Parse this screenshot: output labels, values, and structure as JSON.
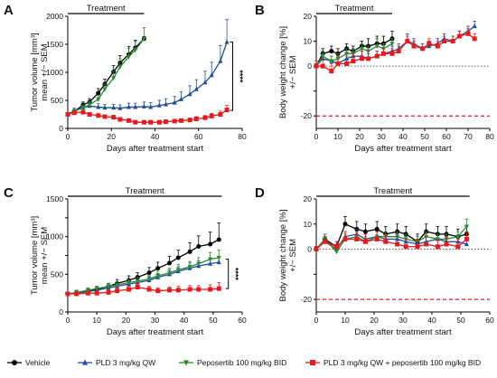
{
  "figure": {
    "legend": [
      {
        "name": "Vehicle",
        "color": "#000000",
        "marker": "circle"
      },
      {
        "name": "PLD 3 mg/kg QW",
        "color": "#1f4e9c",
        "marker": "triangle-up"
      },
      {
        "name": "Peposertib 100 mg/kg BID",
        "color": "#2a8a35",
        "marker": "triangle-down"
      },
      {
        "name": "PLD 3 mg/kg QW + peposertib 100 mg/kg BID",
        "color": "#e8191d",
        "marker": "square"
      }
    ]
  },
  "chart_data": [
    {
      "panel": "A",
      "type": "line",
      "xlabel": "Days after treatment start",
      "ylabel": "Tumor volume [mm³]\nmean +/− SEM",
      "xlim": [
        0,
        80
      ],
      "ylim": [
        0,
        2000
      ],
      "xticks": [
        0,
        20,
        40,
        60,
        80
      ],
      "yticks": [
        0,
        500,
        1000,
        1500,
        2000
      ],
      "treatment": {
        "label": "Treatment",
        "x": [
          0,
          35
        ]
      },
      "significance": {
        "label": "****",
        "y": [
          320,
          1540
        ],
        "x": 74
      },
      "series": [
        {
          "name": "Vehicle",
          "x": [
            0,
            3,
            7,
            10,
            14,
            17,
            21,
            24,
            28,
            31,
            35
          ],
          "y": [
            250,
            300,
            420,
            470,
            630,
            790,
            1010,
            1170,
            1320,
            1440,
            1600
          ],
          "err": [
            30,
            40,
            50,
            60,
            80,
            90,
            110,
            130,
            140,
            130,
            40
          ]
        },
        {
          "name": "PLD 3 mg/kg QW",
          "x": [
            0,
            3,
            7,
            10,
            14,
            17,
            21,
            24,
            28,
            31,
            35,
            38,
            42,
            45,
            49,
            52,
            56,
            59,
            63,
            66,
            70,
            73
          ],
          "y": [
            250,
            320,
            370,
            400,
            380,
            370,
            370,
            360,
            380,
            380,
            390,
            380,
            410,
            430,
            460,
            520,
            610,
            700,
            820,
            950,
            1200,
            1540
          ],
          "err": [
            30,
            40,
            50,
            60,
            60,
            60,
            60,
            60,
            70,
            70,
            80,
            80,
            90,
            100,
            110,
            130,
            150,
            170,
            200,
            230,
            280,
            400
          ]
        },
        {
          "name": "Peposertib 100 mg/kg BID",
          "x": [
            0,
            3,
            7,
            10,
            14,
            17,
            21,
            24,
            28,
            31,
            35
          ],
          "y": [
            250,
            300,
            370,
            420,
            520,
            700,
            900,
            1100,
            1280,
            1400,
            1600
          ],
          "err": [
            30,
            40,
            50,
            60,
            70,
            90,
            120,
            140,
            150,
            150,
            200
          ]
        },
        {
          "name": "PLD 3 mg/kg QW + peposertib 100 mg/kg BID",
          "x": [
            0,
            3,
            7,
            10,
            14,
            17,
            21,
            24,
            28,
            31,
            35,
            38,
            42,
            45,
            49,
            52,
            56,
            59,
            63,
            66,
            70,
            73
          ],
          "y": [
            250,
            280,
            290,
            250,
            230,
            210,
            200,
            160,
            140,
            110,
            110,
            110,
            110,
            120,
            130,
            140,
            150,
            170,
            190,
            220,
            250,
            330
          ],
          "err": [
            20,
            30,
            30,
            30,
            30,
            30,
            30,
            30,
            30,
            20,
            20,
            20,
            20,
            20,
            20,
            30,
            30,
            40,
            40,
            50,
            60,
            80
          ]
        }
      ]
    },
    {
      "panel": "B",
      "type": "line",
      "xlabel": "Days after treatment start",
      "ylabel": "Body weight change [%]\n+/− SEM",
      "xlim": [
        0,
        80
      ],
      "ylim": [
        -25,
        20
      ],
      "xticks": [
        0,
        10,
        20,
        30,
        40,
        50,
        60,
        70,
        80
      ],
      "yticks": [
        -20,
        -10,
        0,
        10,
        20
      ],
      "yticks_shown": [
        -20,
        0,
        10,
        20
      ],
      "treatment": {
        "label": "Treatment",
        "x": [
          0,
          35
        ]
      },
      "reference_lines": [
        {
          "y": 0,
          "style": "dotted",
          "color": "#555555"
        },
        {
          "y": -20,
          "style": "dashed",
          "color": "#e8191d"
        }
      ],
      "series": [
        {
          "name": "Vehicle",
          "x": [
            0,
            3,
            7,
            10,
            14,
            17,
            21,
            24,
            28,
            31,
            35
          ],
          "y": [
            0,
            5,
            6,
            5,
            7,
            6,
            8,
            8,
            9,
            9,
            11
          ],
          "err": [
            1,
            2,
            2,
            2,
            2,
            2,
            2,
            3,
            3,
            3,
            3
          ]
        },
        {
          "name": "PLD 3 mg/kg QW",
          "x": [
            0,
            3,
            7,
            10,
            14,
            17,
            21,
            24,
            28,
            31,
            35,
            38,
            42,
            45,
            49,
            52,
            56,
            59,
            63,
            66,
            70,
            73
          ],
          "y": [
            0,
            3,
            2,
            1,
            3,
            4,
            4,
            3,
            4,
            5,
            6,
            7,
            10,
            9,
            7,
            8,
            9,
            11,
            10,
            12,
            14,
            16
          ],
          "err": [
            1,
            2,
            2,
            2,
            2,
            2,
            2,
            2,
            2,
            2,
            2,
            2,
            3,
            2,
            2,
            2,
            2,
            2,
            2,
            2,
            2,
            2
          ]
        },
        {
          "name": "Peposertib 100 mg/kg BID",
          "x": [
            0,
            3,
            7,
            10,
            14,
            17,
            21,
            24,
            28,
            31,
            35
          ],
          "y": [
            0,
            4,
            2,
            3,
            5,
            5,
            7,
            6,
            8,
            7,
            9
          ],
          "err": [
            1,
            2,
            2,
            2,
            2,
            2,
            2,
            2,
            3,
            2,
            2
          ]
        },
        {
          "name": "PLD 3 mg/kg QW + peposertib 100 mg/kg BID",
          "x": [
            0,
            3,
            7,
            10,
            14,
            17,
            21,
            24,
            28,
            31,
            35,
            38,
            42,
            45,
            49,
            52,
            56,
            59,
            63,
            66,
            70,
            73
          ],
          "y": [
            0,
            0,
            -2,
            1,
            1,
            2,
            3,
            3,
            4,
            5,
            5,
            6,
            10,
            8,
            7,
            9,
            8,
            10,
            10,
            12,
            13,
            11
          ],
          "err": [
            2,
            3,
            3,
            3,
            3,
            3,
            3,
            3,
            2,
            2,
            2,
            2,
            2,
            2,
            2,
            2,
            2,
            2,
            2,
            2,
            2,
            2
          ]
        }
      ]
    },
    {
      "panel": "C",
      "type": "line",
      "xlabel": "Days after treatment start",
      "ylabel": "Tumor volume [mm³]\nmean +/− SEM",
      "xlim": [
        0,
        60
      ],
      "ylim": [
        0,
        1500
      ],
      "xticks": [
        0,
        10,
        20,
        30,
        40,
        50,
        60
      ],
      "yticks": [
        0,
        250,
        500,
        750,
        1000,
        1250,
        1500
      ],
      "yticks_shown": [
        0,
        500,
        1000,
        1500
      ],
      "treatment": {
        "label": "Treatment",
        "x": [
          0,
          53
        ]
      },
      "significance": {
        "label": "****",
        "y": [
          310,
          700
        ],
        "x": 54
      },
      "series": [
        {
          "name": "Vehicle",
          "x": [
            0,
            3,
            7,
            10,
            14,
            17,
            21,
            24,
            28,
            31,
            35,
            38,
            42,
            45,
            49,
            52
          ],
          "y": [
            240,
            250,
            280,
            300,
            340,
            380,
            420,
            460,
            520,
            580,
            650,
            720,
            800,
            870,
            900,
            960
          ],
          "err": [
            20,
            30,
            30,
            40,
            40,
            50,
            60,
            60,
            70,
            80,
            90,
            100,
            120,
            140,
            160,
            220
          ]
        },
        {
          "name": "PLD 3 mg/kg QW",
          "x": [
            0,
            3,
            7,
            10,
            14,
            17,
            21,
            24,
            28,
            31,
            35,
            38,
            42,
            45,
            49,
            52
          ],
          "y": [
            240,
            250,
            270,
            290,
            320,
            340,
            370,
            390,
            420,
            460,
            500,
            540,
            580,
            610,
            640,
            660
          ],
          "err": [
            20,
            20,
            30,
            30,
            30,
            40,
            40,
            40,
            50,
            50,
            60,
            60,
            70,
            70,
            80,
            80
          ]
        },
        {
          "name": "Peposertib 100 mg/kg BID",
          "x": [
            0,
            3,
            7,
            10,
            14,
            17,
            21,
            24,
            28,
            31,
            35,
            38,
            42,
            45,
            49,
            52
          ],
          "y": [
            240,
            260,
            290,
            310,
            340,
            360,
            390,
            410,
            440,
            480,
            520,
            560,
            600,
            640,
            700,
            720
          ],
          "err": [
            20,
            30,
            30,
            30,
            40,
            40,
            40,
            50,
            50,
            60,
            60,
            70,
            70,
            80,
            90,
            100
          ]
        },
        {
          "name": "PLD 3 mg/kg QW + peposertib 100 mg/kg BID",
          "x": [
            0,
            3,
            7,
            10,
            14,
            17,
            21,
            24,
            28,
            31,
            35,
            38,
            42,
            45,
            49,
            52
          ],
          "y": [
            240,
            240,
            250,
            250,
            260,
            280,
            300,
            330,
            300,
            280,
            290,
            290,
            300,
            300,
            300,
            310
          ],
          "err": [
            20,
            20,
            30,
            30,
            30,
            40,
            40,
            60,
            40,
            40,
            40,
            50,
            50,
            50,
            60,
            80
          ]
        }
      ]
    },
    {
      "panel": "D",
      "type": "line",
      "xlabel": "Days after treatment start",
      "ylabel": "Body weight change [%]\n+/− SEM",
      "xlim": [
        0,
        60
      ],
      "ylim": [
        -25,
        20
      ],
      "xticks": [
        0,
        10,
        20,
        30,
        40,
        50,
        60
      ],
      "yticks": [
        -20,
        -10,
        0,
        10,
        20
      ],
      "yticks_shown": [
        -20,
        0,
        10,
        20
      ],
      "treatment": {
        "label": "Treatment",
        "x": [
          0,
          53
        ]
      },
      "reference_lines": [
        {
          "y": 0,
          "style": "dotted",
          "color": "#555555"
        },
        {
          "y": -20,
          "style": "dashed",
          "color": "#e8191d"
        }
      ],
      "series": [
        {
          "name": "Vehicle",
          "x": [
            0,
            3,
            7,
            10,
            14,
            17,
            21,
            24,
            28,
            31,
            35,
            38,
            42,
            45,
            49,
            52
          ],
          "y": [
            0,
            4,
            1,
            10,
            8,
            7,
            8,
            6,
            7,
            6,
            3,
            7,
            6,
            6,
            5,
            6
          ],
          "err": [
            1,
            2,
            2,
            3,
            3,
            3,
            3,
            3,
            3,
            3,
            3,
            3,
            3,
            3,
            3,
            3
          ]
        },
        {
          "name": "PLD 3 mg/kg QW",
          "x": [
            0,
            3,
            7,
            10,
            14,
            17,
            21,
            24,
            28,
            31,
            35,
            38,
            42,
            45,
            49,
            52
          ],
          "y": [
            0,
            3,
            0,
            5,
            6,
            4,
            5,
            4,
            4,
            3,
            2,
            3,
            4,
            3,
            3,
            2
          ],
          "err": [
            1,
            2,
            2,
            2,
            2,
            2,
            2,
            2,
            2,
            2,
            2,
            2,
            2,
            2,
            2,
            2
          ]
        },
        {
          "name": "Peposertib 100 mg/kg BID",
          "x": [
            0,
            3,
            7,
            10,
            14,
            17,
            21,
            24,
            28,
            31,
            35,
            38,
            42,
            45,
            49,
            52
          ],
          "y": [
            0,
            4,
            -1,
            4,
            5,
            3,
            5,
            5,
            5,
            4,
            3,
            5,
            4,
            4,
            5,
            9
          ],
          "err": [
            1,
            2,
            2,
            2,
            2,
            2,
            2,
            2,
            2,
            2,
            2,
            2,
            2,
            2,
            2,
            3
          ]
        },
        {
          "name": "PLD 3 mg/kg QW + peposertib 100 mg/kg BID",
          "x": [
            0,
            3,
            7,
            10,
            14,
            17,
            21,
            24,
            28,
            31,
            35,
            38,
            42,
            45,
            49,
            52
          ],
          "y": [
            0,
            3,
            1,
            4,
            4,
            3,
            4,
            3,
            2,
            1,
            1,
            2,
            1,
            2,
            1,
            4
          ],
          "err": [
            1,
            2,
            2,
            3,
            3,
            3,
            3,
            3,
            3,
            3,
            3,
            3,
            3,
            3,
            3,
            3
          ]
        }
      ]
    }
  ]
}
